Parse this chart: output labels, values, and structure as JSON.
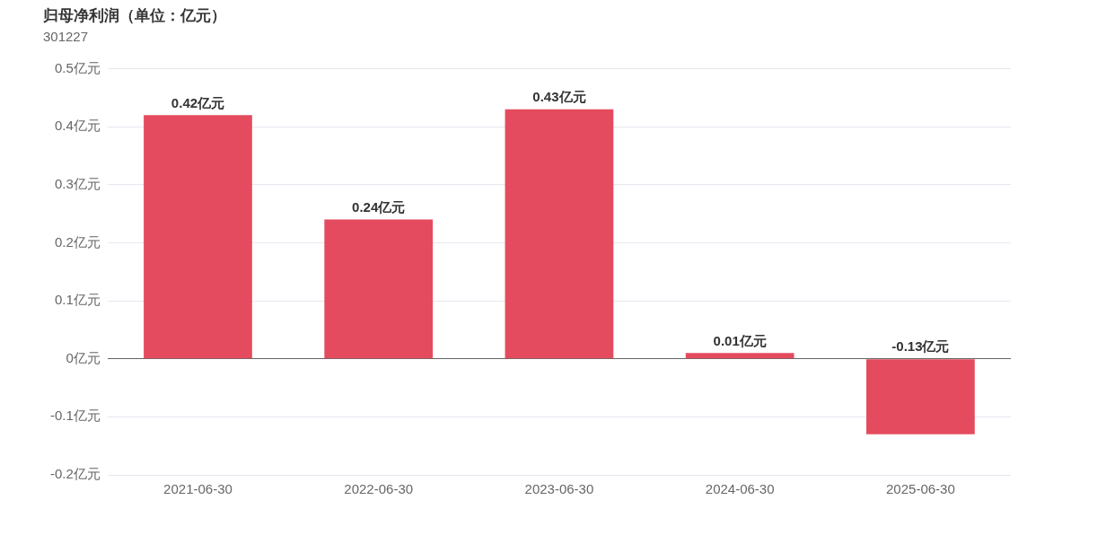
{
  "chart_data": {
    "type": "bar",
    "title": "归母净利润（单位：亿元）",
    "subtitle": "301227",
    "categories": [
      "2021-06-30",
      "2022-06-30",
      "2023-06-30",
      "2024-06-30",
      "2025-06-30"
    ],
    "values": [
      0.42,
      0.24,
      0.43,
      0.01,
      -0.13
    ],
    "value_labels": [
      "0.42亿元",
      "0.24亿元",
      "0.43亿元",
      "0.01亿元",
      "-0.13亿元"
    ],
    "color": "#e54b5e",
    "ylim": [
      -0.2,
      0.5
    ],
    "yticks": [
      {
        "value": -0.2,
        "label": "-0.2亿元"
      },
      {
        "value": -0.1,
        "label": "-0.1亿元"
      },
      {
        "value": 0,
        "label": "0亿元"
      },
      {
        "value": 0.1,
        "label": "0.1亿元"
      },
      {
        "value": 0.2,
        "label": "0.2亿元"
      },
      {
        "value": 0.3,
        "label": "0.3亿元"
      },
      {
        "value": 0.4,
        "label": "0.4亿元"
      },
      {
        "value": 0.5,
        "label": "0.5亿元"
      }
    ],
    "grid": "y",
    "legend": false
  }
}
